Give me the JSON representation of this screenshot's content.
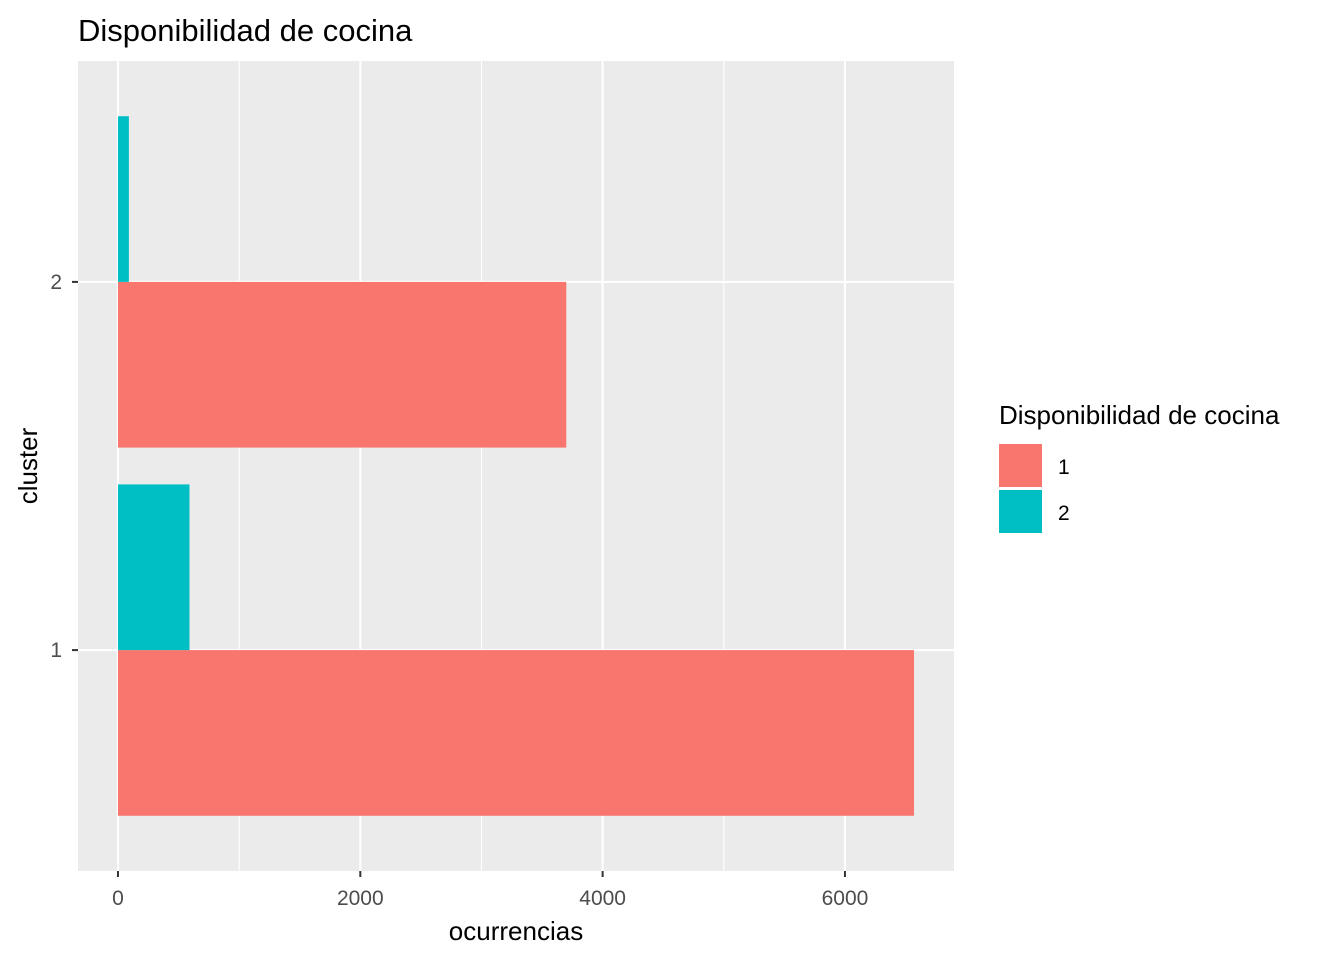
{
  "chart_data": {
    "type": "bar",
    "orientation": "horizontal",
    "position": "dodge",
    "title": "Disponibilidad de cocina",
    "xlabel": "ocurrencias",
    "ylabel": "cluster",
    "categories": [
      "1",
      "2"
    ],
    "x_ticks": [
      0,
      2000,
      4000,
      6000
    ],
    "x_tick_labels": [
      "0",
      "2000",
      "4000",
      "6000"
    ],
    "xlim": [
      -330,
      6900
    ],
    "grid": true,
    "legend": {
      "title": "Disponibilidad de cocina",
      "placement": "right"
    },
    "series": [
      {
        "name": "1",
        "color": "#F8766D",
        "values": [
          6570,
          3700
        ]
      },
      {
        "name": "2",
        "color": "#00BFC4",
        "values": [
          590,
          90
        ]
      }
    ]
  },
  "colors": {
    "panel_background": "#EBEBEB",
    "grid": "#FFFFFF",
    "tick_mark": "#333333"
  }
}
